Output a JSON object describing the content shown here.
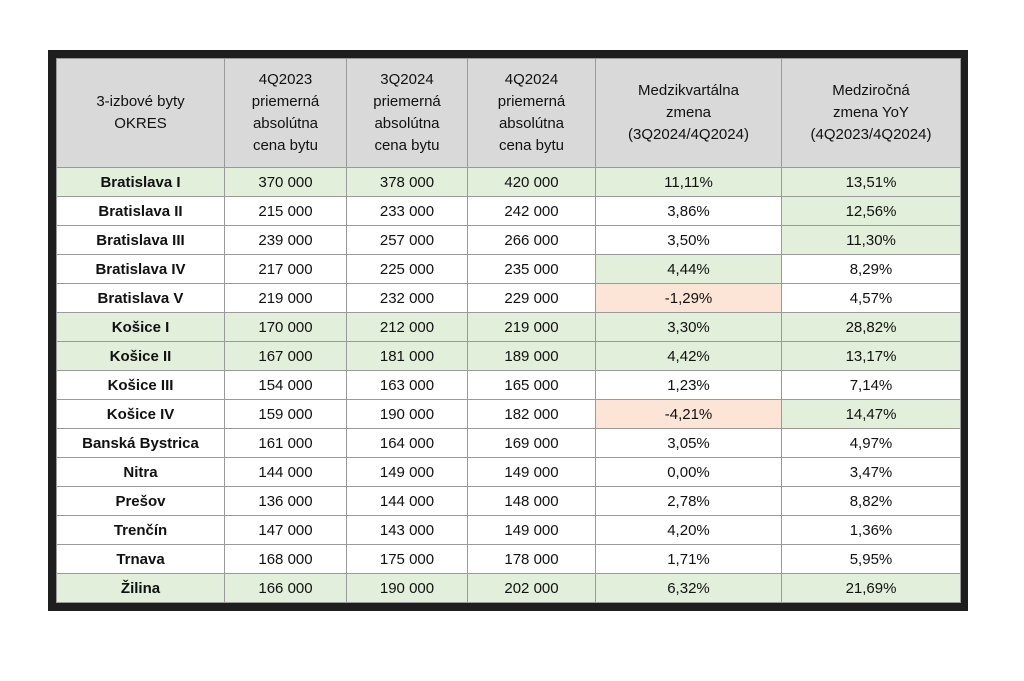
{
  "table": {
    "header": [
      "3-izbové byty\nOKRES",
      "4Q2023\npriemerná\nabsolútna\ncena bytu",
      "3Q2024\npriemerná\nabsolútna\ncena bytu",
      "4Q2024\npriemerná\nabsolútna\ncena bytu",
      "Medzikvartálna\nzmena\n(3Q2024/4Q2024)",
      "Medziročná\nzmena YoY\n(4Q2023/4Q2024)"
    ],
    "rows": [
      [
        "Bratislava I",
        "370 000",
        "378 000",
        "420 000",
        "11,11%",
        "13,51%"
      ],
      [
        "Bratislava II",
        "215 000",
        "233 000",
        "242 000",
        "3,86%",
        "12,56%"
      ],
      [
        "Bratislava III",
        "239 000",
        "257 000",
        "266 000",
        "3,50%",
        "11,30%"
      ],
      [
        "Bratislava IV",
        "217 000",
        "225 000",
        "235 000",
        "4,44%",
        "8,29%"
      ],
      [
        "Bratislava V",
        "219 000",
        "232 000",
        "229 000",
        "-1,29%",
        "4,57%"
      ],
      [
        "Košice I",
        "170 000",
        "212 000",
        "219 000",
        "3,30%",
        "28,82%"
      ],
      [
        "Košice II",
        "167 000",
        "181 000",
        "189 000",
        "4,42%",
        "13,17%"
      ],
      [
        "Košice III",
        "154 000",
        "163 000",
        "165 000",
        "1,23%",
        "7,14%"
      ],
      [
        "Košice IV",
        "159 000",
        "190 000",
        "182 000",
        "-4,21%",
        "14,47%"
      ],
      [
        "Banská Bystrica",
        "161 000",
        "164 000",
        "169 000",
        "3,05%",
        "4,97%"
      ],
      [
        "Nitra",
        "144 000",
        "149 000",
        "149 000",
        "0,00%",
        "3,47%"
      ],
      [
        "Prešov",
        "136 000",
        "144 000",
        "148 000",
        "2,78%",
        "8,82%"
      ],
      [
        "Trenčín",
        "147 000",
        "143 000",
        "149 000",
        "4,20%",
        "1,36%"
      ],
      [
        "Trnava",
        "168 000",
        "175 000",
        "178 000",
        "1,71%",
        "5,95%"
      ],
      [
        "Žilina",
        "166 000",
        "190 000",
        "202 000",
        "6,32%",
        "21,69%"
      ]
    ]
  }
}
